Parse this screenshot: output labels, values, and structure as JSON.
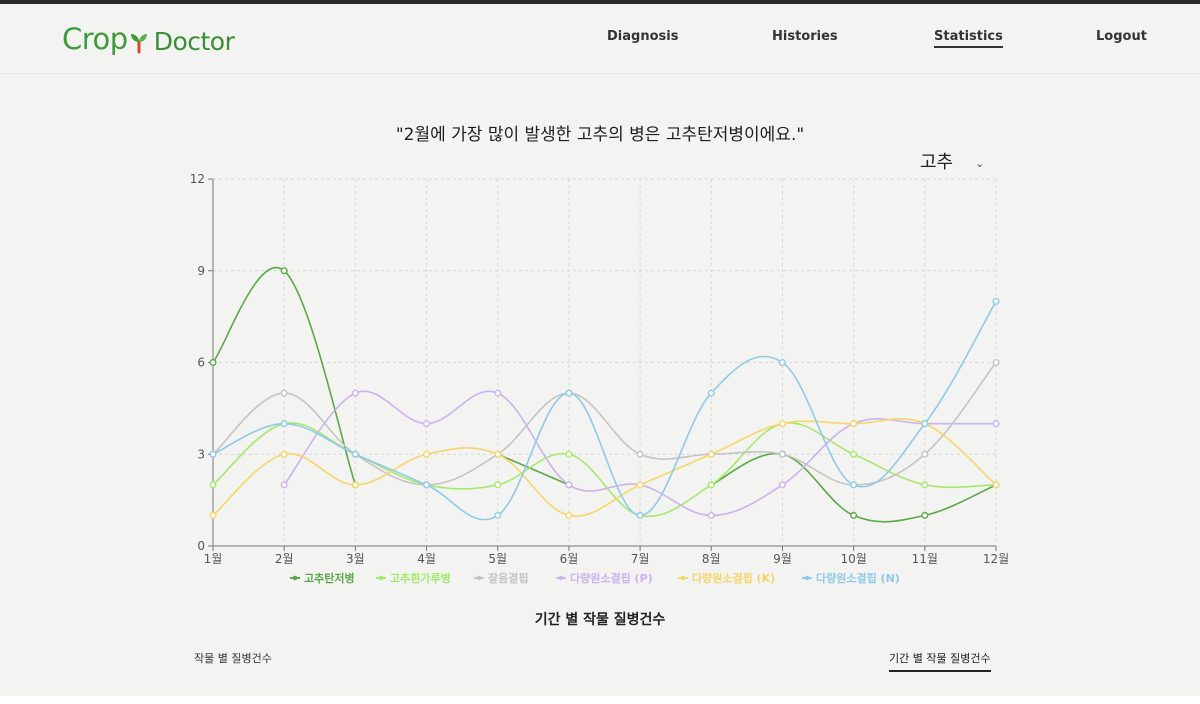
{
  "app": {
    "brand_left": "Crop",
    "brand_right": "Doctor",
    "nav": [
      {
        "label": "Diagnosis",
        "active": false
      },
      {
        "label": "Histories",
        "active": false
      },
      {
        "label": "Statistics",
        "active": true
      },
      {
        "label": "Logout",
        "active": false
      }
    ]
  },
  "headline": "\"2월에 가장 많이 발생한 고추의 병은 고추탄저병이에요.\"",
  "crop_select": {
    "value": "고추"
  },
  "chart_caption": "기간 별 작물 질병건수",
  "tabs": {
    "left": "작물 별 질병건수",
    "right": "기간 별 작물 질병건수"
  },
  "colors": {
    "accent": "#3f9a3a"
  },
  "chart_data": {
    "type": "line",
    "x": [
      "1월",
      "2월",
      "3월",
      "4월",
      "5월",
      "6월",
      "7월",
      "8월",
      "9월",
      "10월",
      "11월",
      "12월"
    ],
    "ylim": [
      0,
      12
    ],
    "yticks": [
      0,
      3,
      6,
      9,
      12
    ],
    "grid": true,
    "legend": "bottom",
    "series": [
      {
        "name": "고추탄저병",
        "color": "#5aa84a",
        "values": [
          6,
          9,
          2,
          null,
          3,
          2,
          null,
          2,
          3,
          1,
          1,
          2
        ]
      },
      {
        "name": "고추흰가루병",
        "color": "#a6e86e",
        "values": [
          2,
          4,
          3,
          2,
          2,
          3,
          1,
          2,
          4,
          3,
          2,
          2
        ]
      },
      {
        "name": "잘음결핍",
        "color": "#c4c4c4",
        "values": [
          3,
          5,
          3,
          2,
          3,
          5,
          3,
          3,
          3,
          2,
          3,
          6
        ]
      },
      {
        "name": "다량원소결핍 (P)",
        "color": "#cdb3ee",
        "values": [
          null,
          2,
          5,
          4,
          5,
          2,
          2,
          1,
          2,
          4,
          4,
          4
        ]
      },
      {
        "name": "다량원소결핍 (K)",
        "color": "#f5d66a",
        "values": [
          1,
          3,
          2,
          3,
          3,
          1,
          2,
          3,
          4,
          4,
          4,
          2
        ]
      },
      {
        "name": "다량원소결핍 (N)",
        "color": "#8fcbe8",
        "values": [
          3,
          4,
          3,
          2,
          1,
          5,
          1,
          5,
          6,
          2,
          4,
          8
        ]
      }
    ]
  }
}
